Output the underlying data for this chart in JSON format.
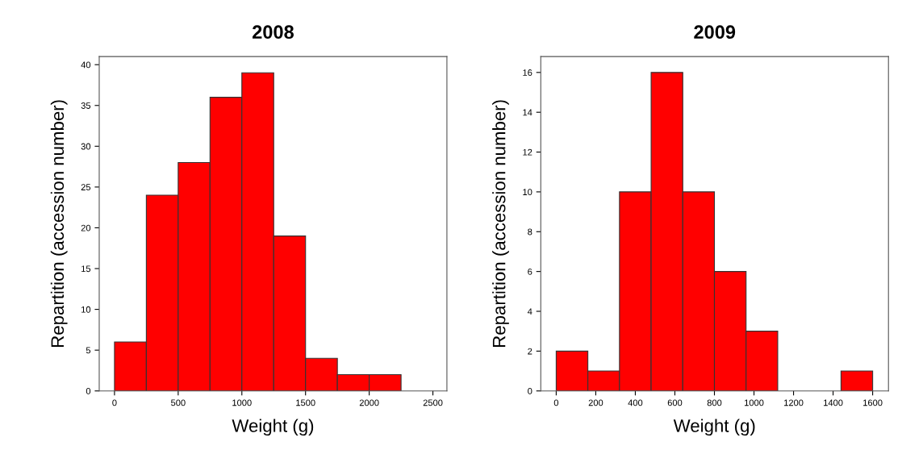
{
  "chart_data": [
    {
      "type": "histogram",
      "title": "2008",
      "xlabel": "Weight (g)",
      "ylabel": "Repartition (accession number)",
      "color": "#ff0000",
      "bins": [
        0,
        250,
        500,
        750,
        1000,
        1250,
        1500,
        1750,
        2000,
        2250
      ],
      "values": [
        6,
        24,
        28,
        36,
        39,
        19,
        4,
        2,
        2
      ],
      "xlim": [
        -120,
        2610
      ],
      "xticks": [
        0,
        500,
        1000,
        1500,
        2000,
        2500
      ],
      "ylim": [
        0,
        41
      ],
      "yticks": [
        0,
        5,
        10,
        15,
        20,
        25,
        30,
        35,
        40
      ],
      "grid": false
    },
    {
      "type": "histogram",
      "title": "2009",
      "xlabel": "Weight (g)",
      "ylabel": "Repartition (accession number)",
      "color": "#ff0000",
      "bins": [
        0,
        160,
        320,
        480,
        640,
        800,
        960,
        1120,
        1280,
        1440,
        1600
      ],
      "values": [
        2,
        1,
        10,
        16,
        10,
        6,
        3,
        0,
        0,
        1
      ],
      "xlim": [
        -78,
        1680
      ],
      "xticks": [
        0,
        200,
        400,
        600,
        800,
        1000,
        1200,
        1400,
        1600
      ],
      "ylim": [
        0,
        16.8
      ],
      "yticks": [
        0,
        2,
        4,
        6,
        8,
        10,
        12,
        14,
        16
      ],
      "grid": false
    }
  ]
}
